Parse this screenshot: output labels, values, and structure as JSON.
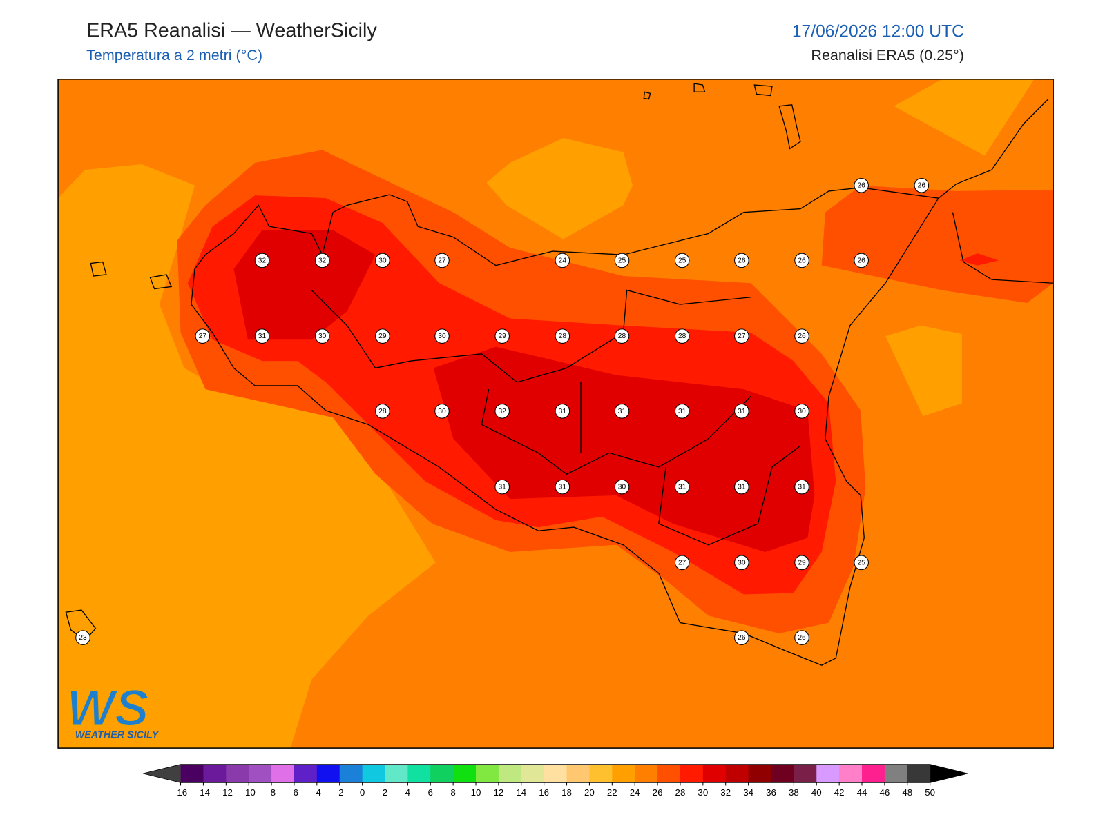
{
  "header": {
    "title": "ERA5 Reanalisi — WeatherSicily",
    "subtitle": "Temperatura a 2 metri (°C)",
    "date": "17/06/2026 12:00 UTC",
    "source": "Reanalisi ERA5 (0.25°)"
  },
  "map": {
    "station_values": [
      26,
      26,
      32,
      32,
      30,
      27,
      24,
      25,
      25,
      26,
      26,
      26,
      27,
      31,
      30,
      29,
      30,
      29,
      28,
      28,
      28,
      27,
      26,
      28,
      30,
      32,
      31,
      31,
      31,
      31,
      30,
      31,
      31,
      30,
      31,
      31,
      31,
      27,
      30,
      29,
      25,
      23,
      26,
      26
    ]
  },
  "colorbar": {
    "ticks": [
      -16,
      -14,
      -12,
      -10,
      -8,
      -6,
      -4,
      -2,
      0,
      2,
      4,
      6,
      8,
      10,
      12,
      14,
      16,
      18,
      20,
      22,
      24,
      26,
      28,
      30,
      32,
      34,
      36,
      38,
      40,
      42,
      44,
      46,
      48,
      50
    ],
    "colors": [
      "#4a0060",
      "#6a1a9a",
      "#8a3aaa",
      "#a050c0",
      "#e070e8",
      "#6020c8",
      "#1010f0",
      "#1a80d8",
      "#10c8e0",
      "#60e8c8",
      "#10e0a0",
      "#10d060",
      "#10e010",
      "#80e840",
      "#c0e880",
      "#e0e898",
      "#ffe0a0",
      "#ffc870",
      "#ffc030",
      "#ffa000",
      "#ff8000",
      "#ff5000",
      "#ff1a00",
      "#e00000",
      "#c00000",
      "#900000",
      "#700020",
      "#7a2048",
      "#d89aff",
      "#ff80c8",
      "#ff2090",
      "#808080",
      "#383838"
    ],
    "under_color": "#404040",
    "over_color": "#000000"
  },
  "logo": {
    "mark": "WS",
    "text": "WEATHER SICILY"
  }
}
